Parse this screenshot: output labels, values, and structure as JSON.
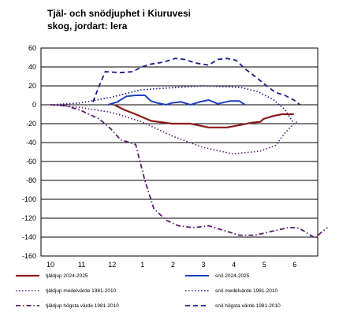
{
  "chart_data": {
    "type": "line",
    "title_line1": "Tjäl- och snödjuphet i Kiuruvesi",
    "title_line2": "skog, jordart: lera",
    "x_ticks": [
      "10",
      "11",
      "12",
      "1",
      "2",
      "3",
      "4",
      "5",
      "6"
    ],
    "y_ticks": [
      60,
      40,
      20,
      0,
      -20,
      -40,
      -60,
      -80,
      -100,
      -120,
      -140,
      -160
    ],
    "ylim": [
      -160,
      60
    ],
    "grid": true,
    "legend_position": "bottom",
    "series": [
      {
        "name": "tjäldjup 2024-2025",
        "color": "#8B1A1A",
        "style": "solid",
        "width": 2.2,
        "points": [
          [
            2.1,
            0
          ],
          [
            2.4,
            -5
          ],
          [
            2.8,
            -10
          ],
          [
            3.3,
            -17
          ],
          [
            4.0,
            -20
          ],
          [
            4.6,
            -20
          ],
          [
            5.2,
            -24
          ],
          [
            5.8,
            -24
          ],
          [
            6.3,
            -21
          ],
          [
            6.6,
            -19
          ],
          [
            6.9,
            -18
          ],
          [
            7.0,
            -15
          ],
          [
            7.3,
            -12
          ],
          [
            7.6,
            -10
          ],
          [
            8.0,
            -10
          ]
        ]
      },
      {
        "name": "snö 2024-2025",
        "color": "#1F3FBF",
        "style": "solid",
        "width": 2,
        "points": [
          [
            1.9,
            0
          ],
          [
            2.2,
            3
          ],
          [
            2.5,
            9
          ],
          [
            2.8,
            10
          ],
          [
            3.1,
            10
          ],
          [
            3.3,
            4
          ],
          [
            3.5,
            2
          ],
          [
            3.8,
            0
          ],
          [
            4.0,
            2
          ],
          [
            4.3,
            3
          ],
          [
            4.6,
            0
          ],
          [
            4.9,
            3
          ],
          [
            5.2,
            5
          ],
          [
            5.5,
            1
          ],
          [
            5.9,
            4
          ],
          [
            6.2,
            4
          ],
          [
            6.4,
            0
          ]
        ]
      },
      {
        "name": "tjäldjup medelvärde 1981-2010",
        "color": "#5A1A6E",
        "style": "dotted",
        "width": 1.6,
        "points": [
          [
            0,
            0
          ],
          [
            1,
            -3
          ],
          [
            2,
            -8
          ],
          [
            3,
            -18
          ],
          [
            4,
            -33
          ],
          [
            5,
            -45
          ],
          [
            6,
            -52
          ],
          [
            6.9,
            -49
          ],
          [
            7.4,
            -43
          ],
          [
            7.7,
            -30
          ],
          [
            8.0,
            -20
          ],
          [
            8.1,
            -18
          ]
        ]
      },
      {
        "name": "snö medelvärde 1981-2010",
        "color": "#1A1A8C",
        "style": "dotted",
        "width": 1.6,
        "points": [
          [
            0,
            0
          ],
          [
            1,
            2
          ],
          [
            2,
            8
          ],
          [
            3,
            16
          ],
          [
            4,
            18
          ],
          [
            5,
            20
          ],
          [
            5.8,
            19
          ],
          [
            6.3,
            18
          ],
          [
            6.8,
            14
          ],
          [
            7.3,
            6
          ],
          [
            7.7,
            -5
          ],
          [
            8.0,
            -20
          ]
        ]
      },
      {
        "name": "tjäldjup högsta värde 1981-2010",
        "color": "#5A1A6E",
        "style": "dashdot",
        "width": 1.8,
        "points": [
          [
            0,
            0
          ],
          [
            0.5,
            -1
          ],
          [
            1,
            -6
          ],
          [
            1.6,
            -15
          ],
          [
            2.0,
            -26
          ],
          [
            2.3,
            -37
          ],
          [
            2.8,
            -42
          ],
          [
            3.1,
            -80
          ],
          [
            3.4,
            -110
          ],
          [
            3.8,
            -122
          ],
          [
            4.2,
            -128
          ],
          [
            4.7,
            -130
          ],
          [
            5.2,
            -128
          ],
          [
            5.7,
            -133
          ],
          [
            6.2,
            -138
          ],
          [
            6.7,
            -138
          ],
          [
            7.0,
            -136
          ],
          [
            7.4,
            -133
          ],
          [
            7.8,
            -130
          ],
          [
            8.1,
            -130
          ],
          [
            8.3,
            -133
          ],
          [
            8.5,
            -137
          ],
          [
            8.7,
            -141
          ],
          [
            8.9,
            -135
          ],
          [
            9.1,
            -130
          ]
        ]
      },
      {
        "name": "snö högsta värde 1981-2010",
        "color": "#1A1A8C",
        "style": "dashed",
        "width": 1.8,
        "points": [
          [
            1.4,
            3
          ],
          [
            1.6,
            20
          ],
          [
            1.8,
            35
          ],
          [
            2.3,
            34
          ],
          [
            2.7,
            35
          ],
          [
            3.0,
            40
          ],
          [
            3.3,
            43
          ],
          [
            3.7,
            45
          ],
          [
            4.1,
            49
          ],
          [
            4.4,
            48
          ],
          [
            4.8,
            44
          ],
          [
            5.2,
            42
          ],
          [
            5.5,
            48
          ],
          [
            5.8,
            49
          ],
          [
            6.1,
            47
          ],
          [
            6.4,
            38
          ],
          [
            6.8,
            28
          ],
          [
            7.1,
            20
          ],
          [
            7.4,
            13
          ],
          [
            7.7,
            10
          ],
          [
            8.0,
            5
          ],
          [
            8.2,
            0
          ]
        ]
      }
    ]
  }
}
